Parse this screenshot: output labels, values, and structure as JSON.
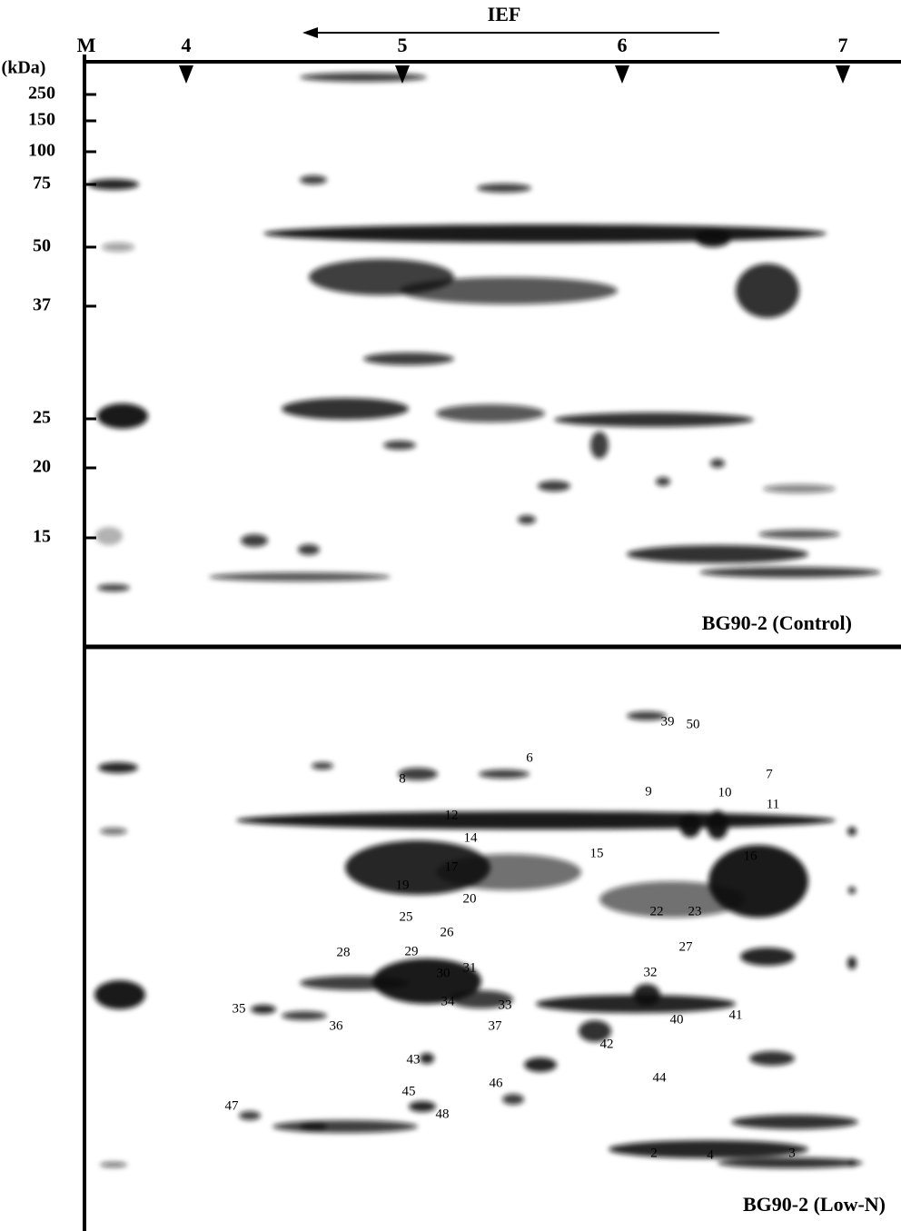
{
  "header": {
    "direction": "IEF",
    "marker_lane": "M",
    "unit": "(kDa)",
    "ph_ticks": [
      "4",
      "5",
      "6",
      "7"
    ]
  },
  "mw_markers": [
    "250",
    "150",
    "100",
    "75",
    "50",
    "37",
    "25",
    "20",
    "15"
  ],
  "panels": [
    {
      "label": "BG90-2 (Control)"
    },
    {
      "label": "BG90-2 (Low-N)",
      "spots": [
        "39",
        "50",
        "6",
        "8",
        "9",
        "10",
        "7",
        "11",
        "12",
        "14",
        "15",
        "16",
        "19",
        "17",
        "20",
        "22",
        "23",
        "25",
        "26",
        "27",
        "28",
        "29",
        "30",
        "31",
        "32",
        "34",
        "33",
        "35",
        "36",
        "37",
        "40",
        "41",
        "42",
        "43",
        "44",
        "46",
        "45",
        "48",
        "47",
        "2",
        "4",
        "3"
      ]
    }
  ]
}
